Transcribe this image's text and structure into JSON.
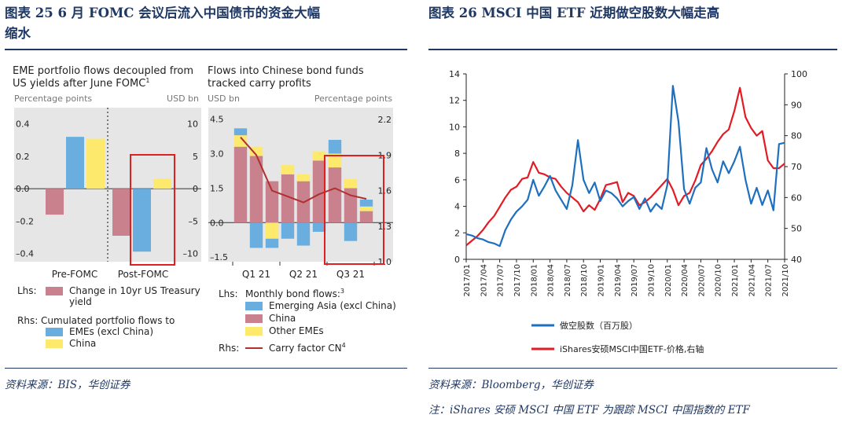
{
  "left": {
    "title": "图表 25 6月 FOMC 会议后流入中国债市的资金大幅缩水",
    "title_line1": "图表 25    6 月 FOMC 会议后流入中国债市的资金大幅",
    "title_line2": "缩水",
    "source": "资料来源：BIS，华创证券",
    "panelA": {
      "title1": "EME portfolio flows decoupled from",
      "title2": "US yields after June FOMC",
      "title_sup": "1",
      "lhs_unit": "Percentage points",
      "rhs_unit": "USD bn",
      "lhs_ticks": [
        "0.4",
        "0.2",
        "0.0",
        "–0.2",
        "–0.4"
      ],
      "rhs_ticks": [
        "10",
        "5",
        "0",
        "–5",
        "–10"
      ],
      "categories": [
        "Pre-FOMC",
        "Post-FOMC"
      ]
    },
    "panelB": {
      "title1": "Flows into Chinese bond funds",
      "title2": "tracked carry profits",
      "lhs_unit": "USD bn",
      "rhs_unit": "Percentage points",
      "lhs_ticks": [
        "4.5",
        "3.0",
        "1.5",
        "0.0",
        "–1.5"
      ],
      "rhs_ticks": [
        "2.2",
        "1.9",
        "1.6",
        "1.3",
        "1.0"
      ],
      "quarters": [
        "Q1 21",
        "Q2 21",
        "Q3 21"
      ]
    },
    "legend": {
      "lhs_label": "Lhs:",
      "lhs_item_line1": "Change in 10yr US Treasury",
      "lhs_item_line2": "yield",
      "rhs_header": "Rhs: Cumulated portfolio flows to",
      "rhs_item1": "EMEs (excl China)",
      "rhs_item2": "China",
      "b_lhs_label": "Lhs:",
      "b_lhs_header": "Monthly bond flows:",
      "b_lhs_sup": "3",
      "b_item1": "Emerging Asia (excl China)",
      "b_item2": "China",
      "b_item3": "Other EMEs",
      "b_rhs_label": "Rhs:",
      "b_rhs_item": "Carry factor CN",
      "b_rhs_sup": "4"
    }
  },
  "right": {
    "title": "图表 26    MSCI 中国 ETF 近期做空股数大幅走高",
    "source": "资料来源：Bloomberg，华创证券",
    "note": "注：iShares 安硕 MSCI 中国 ETF 为跟踪 MSCI 中国指数的 ETF",
    "legend_short": "做空股数（百万股）",
    "legend_price": "iShares安硕MSCI中国ETF-价格,右轴"
  },
  "colors": {
    "title_navy": "#1f3864",
    "bis_rose": "#c9828d",
    "bis_blue": "#6aaee0",
    "bis_yellow": "#fde96c",
    "bis_line": "#b03030",
    "bis_bg": "#e6e6e6",
    "highlight_red": "#e02020",
    "short_blue": "#1f6fbf",
    "price_red": "#e21b24"
  },
  "chart_data": [
    {
      "type": "bar",
      "panel": "EME portfolio flows decoupled from US yields after June FOMC",
      "categories": [
        "Pre-FOMC",
        "Post-FOMC"
      ],
      "lhs_unit": "Percentage points",
      "rhs_unit": "USD bn",
      "ylim_lhs": [
        -0.45,
        0.5
      ],
      "ylim_rhs": [
        -11.25,
        12.5
      ],
      "series": [
        {
          "name": "Change in 10yr US Treasury yield",
          "axis": "lhs",
          "values": [
            -0.16,
            -0.29
          ]
        },
        {
          "name": "EMEs (excl China)",
          "axis": "rhs",
          "values": [
            8.0,
            -9.7
          ]
        },
        {
          "name": "China",
          "axis": "rhs",
          "values": [
            7.7,
            1.5
          ]
        }
      ]
    },
    {
      "type": "bar",
      "panel": "Flows into Chinese bond funds tracked carry profits",
      "stacked": true,
      "x": [
        "2021-01",
        "2021-02",
        "2021-03",
        "2021-04",
        "2021-05",
        "2021-06",
        "2021-07",
        "2021-08",
        "2021-09"
      ],
      "quarters": [
        "Q1 21",
        "Q2 21",
        "Q3 21"
      ],
      "lhs_unit": "USD bn",
      "rhs_unit": "Percentage points",
      "ylim_lhs": [
        -1.7,
        5.0
      ],
      "ylim_rhs": [
        1.0,
        2.3
      ],
      "series": [
        {
          "name": "China",
          "axis": "lhs",
          "values": [
            3.3,
            2.9,
            1.8,
            2.1,
            1.8,
            2.7,
            2.4,
            1.5,
            0.5
          ]
        },
        {
          "name": "Other EMEs",
          "axis": "lhs",
          "values": [
            0.5,
            0.4,
            -0.7,
            0.4,
            0.3,
            0.4,
            0.6,
            0.4,
            0.2
          ]
        },
        {
          "name": "Emerging Asia (excl China)",
          "axis": "lhs",
          "values": [
            0.3,
            -1.1,
            -0.4,
            -0.7,
            -1.0,
            -0.4,
            0.6,
            -0.8,
            0.3
          ]
        },
        {
          "name": "Carry factor CN",
          "axis": "rhs",
          "type": "line",
          "values": [
            2.05,
            1.9,
            1.6,
            1.55,
            1.5,
            1.57,
            1.62,
            1.56,
            1.53
          ]
        }
      ]
    },
    {
      "type": "line",
      "x_ticks": [
        "2017/01",
        "2017/04",
        "2017/07",
        "2017/10",
        "2018/01",
        "2018/04",
        "2018/07",
        "2018/10",
        "2019/01",
        "2019/04",
        "2019/07",
        "2019/10",
        "2020/01",
        "2020/04",
        "2020/07",
        "2020/10",
        "2021/01",
        "2021/04",
        "2021/07",
        "2021/10"
      ],
      "ylim_left": [
        0,
        14
      ],
      "ylim_right": [
        40,
        100
      ],
      "yticks_left": [
        0,
        2,
        4,
        6,
        8,
        10,
        12,
        14
      ],
      "yticks_right": [
        40,
        50,
        60,
        70,
        80,
        90,
        100
      ],
      "series": [
        {
          "name": "做空股数（百万股）",
          "axis": "left",
          "points": [
            [
              "2017/01",
              1.9
            ],
            [
              "2017/02",
              1.8
            ],
            [
              "2017/03",
              1.6
            ],
            [
              "2017/04",
              1.5
            ],
            [
              "2017/05",
              1.3
            ],
            [
              "2017/06",
              1.2
            ],
            [
              "2017/07",
              1.0
            ],
            [
              "2017/08",
              2.2
            ],
            [
              "2017/09",
              3.0
            ],
            [
              "2017/10",
              3.6
            ],
            [
              "2017/11",
              4.0
            ],
            [
              "2017/12",
              4.5
            ],
            [
              "2018/01",
              6.0
            ],
            [
              "2018/02",
              4.8
            ],
            [
              "2018/03",
              5.5
            ],
            [
              "2018/04",
              6.3
            ],
            [
              "2018/05",
              5.2
            ],
            [
              "2018/06",
              4.5
            ],
            [
              "2018/07",
              3.8
            ],
            [
              "2018/08",
              5.6
            ],
            [
              "2018/09",
              9.0
            ],
            [
              "2018/10",
              6.0
            ],
            [
              "2018/11",
              5.0
            ],
            [
              "2018/12",
              5.8
            ],
            [
              "2019/01",
              4.4
            ],
            [
              "2019/02",
              5.2
            ],
            [
              "2019/03",
              5.0
            ],
            [
              "2019/04",
              4.6
            ],
            [
              "2019/05",
              4.0
            ],
            [
              "2019/06",
              4.4
            ],
            [
              "2019/07",
              4.7
            ],
            [
              "2019/08",
              3.8
            ],
            [
              "2019/09",
              4.6
            ],
            [
              "2019/10",
              3.6
            ],
            [
              "2019/11",
              4.2
            ],
            [
              "2019/12",
              3.8
            ],
            [
              "2020/01",
              5.6
            ],
            [
              "2020/02",
              13.1
            ],
            [
              "2020/03",
              10.4
            ],
            [
              "2020/04",
              5.3
            ],
            [
              "2020/05",
              4.2
            ],
            [
              "2020/06",
              5.4
            ],
            [
              "2020/07",
              5.8
            ],
            [
              "2020/08",
              8.4
            ],
            [
              "2020/09",
              6.8
            ],
            [
              "2020/10",
              5.8
            ],
            [
              "2020/11",
              7.4
            ],
            [
              "2020/12",
              6.5
            ],
            [
              "2021/01",
              7.4
            ],
            [
              "2021/02",
              8.5
            ],
            [
              "2021/03",
              6.0
            ],
            [
              "2021/04",
              4.2
            ],
            [
              "2021/05",
              5.4
            ],
            [
              "2021/06",
              4.1
            ],
            [
              "2021/07",
              5.2
            ],
            [
              "2021/08",
              3.7
            ],
            [
              "2021/09",
              8.7
            ],
            [
              "2021/10",
              8.8
            ]
          ]
        },
        {
          "name": "iShares安硕MSCI中国ETF-价格,右轴",
          "axis": "right",
          "points": [
            [
              "2017/01",
              44.5
            ],
            [
              "2017/02",
              46.0
            ],
            [
              "2017/03",
              47.5
            ],
            [
              "2017/04",
              49.5
            ],
            [
              "2017/05",
              52.0
            ],
            [
              "2017/06",
              54.0
            ],
            [
              "2017/07",
              57.0
            ],
            [
              "2017/08",
              60.0
            ],
            [
              "2017/09",
              62.5
            ],
            [
              "2017/10",
              63.5
            ],
            [
              "2017/11",
              66.0
            ],
            [
              "2017/12",
              66.5
            ],
            [
              "2018/01",
              71.5
            ],
            [
              "2018/02",
              68.0
            ],
            [
              "2018/03",
              67.5
            ],
            [
              "2018/04",
              66.5
            ],
            [
              "2018/05",
              66.0
            ],
            [
              "2018/06",
              63.5
            ],
            [
              "2018/07",
              61.5
            ],
            [
              "2018/08",
              60.0
            ],
            [
              "2018/09",
              58.5
            ],
            [
              "2018/10",
              55.5
            ],
            [
              "2018/11",
              57.5
            ],
            [
              "2018/12",
              56.0
            ],
            [
              "2019/01",
              59.5
            ],
            [
              "2019/02",
              64.0
            ],
            [
              "2019/03",
              64.5
            ],
            [
              "2019/04",
              65.0
            ],
            [
              "2019/05",
              58.5
            ],
            [
              "2019/06",
              61.5
            ],
            [
              "2019/07",
              60.5
            ],
            [
              "2019/08",
              57.5
            ],
            [
              "2019/09",
              58.5
            ],
            [
              "2019/10",
              60.0
            ],
            [
              "2019/11",
              62.0
            ],
            [
              "2019/12",
              64.0
            ],
            [
              "2020/01",
              66.0
            ],
            [
              "2020/02",
              62.5
            ],
            [
              "2020/03",
              57.5
            ],
            [
              "2020/04",
              60.5
            ],
            [
              "2020/05",
              61.5
            ],
            [
              "2020/06",
              65.5
            ],
            [
              "2020/07",
              70.5
            ],
            [
              "2020/08",
              72.5
            ],
            [
              "2020/09",
              75.0
            ],
            [
              "2020/10",
              78.0
            ],
            [
              "2020/11",
              80.5
            ],
            [
              "2020/12",
              82.0
            ],
            [
              "2021/01",
              88.0
            ],
            [
              "2021/02",
              95.5
            ],
            [
              "2021/03",
              86.0
            ],
            [
              "2021/04",
              82.5
            ],
            [
              "2021/05",
              80.0
            ],
            [
              "2021/06",
              81.5
            ],
            [
              "2021/07",
              72.0
            ],
            [
              "2021/08",
              69.5
            ],
            [
              "2021/09",
              69.5
            ],
            [
              "2021/10",
              71.0
            ]
          ]
        }
      ]
    }
  ]
}
